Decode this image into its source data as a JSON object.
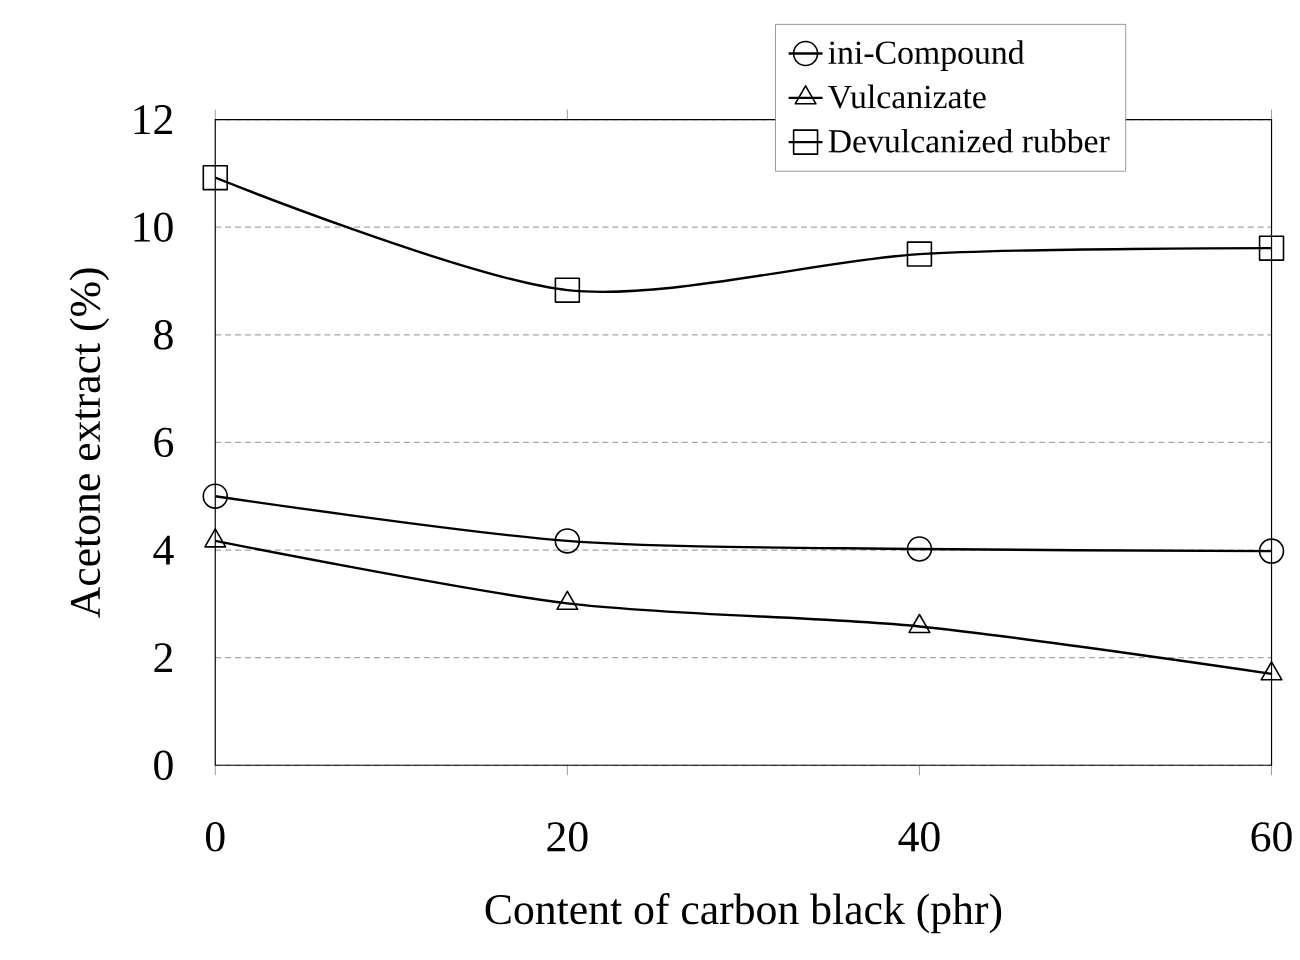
{
  "chart_data": {
    "type": "line",
    "xlabel": "Content of carbon black (phr)",
    "ylabel": "Acetone extract (%)",
    "x": [
      0,
      20,
      40,
      60
    ],
    "series": [
      {
        "name": "ini-Compound",
        "color": "#000000",
        "marker": "circle",
        "values": [
          5.0,
          4.17,
          4.02,
          3.98
        ]
      },
      {
        "name": "Vulcanizate",
        "color": "#000000",
        "marker": "triangle",
        "values": [
          4.17,
          3.01,
          2.58,
          1.7
        ]
      },
      {
        "name": "Devulcanized rubber",
        "color": "#000000",
        "marker": "square",
        "values": [
          10.92,
          8.83,
          9.5,
          9.61
        ]
      }
    ],
    "xlim": [
      0,
      60
    ],
    "xticks": [
      0,
      20,
      40,
      60
    ],
    "ylim": [
      0,
      12
    ],
    "yticks": [
      0,
      2,
      4,
      6,
      8,
      10,
      12
    ],
    "grid": "y",
    "legend": "top right",
    "line_style": "solid"
  }
}
